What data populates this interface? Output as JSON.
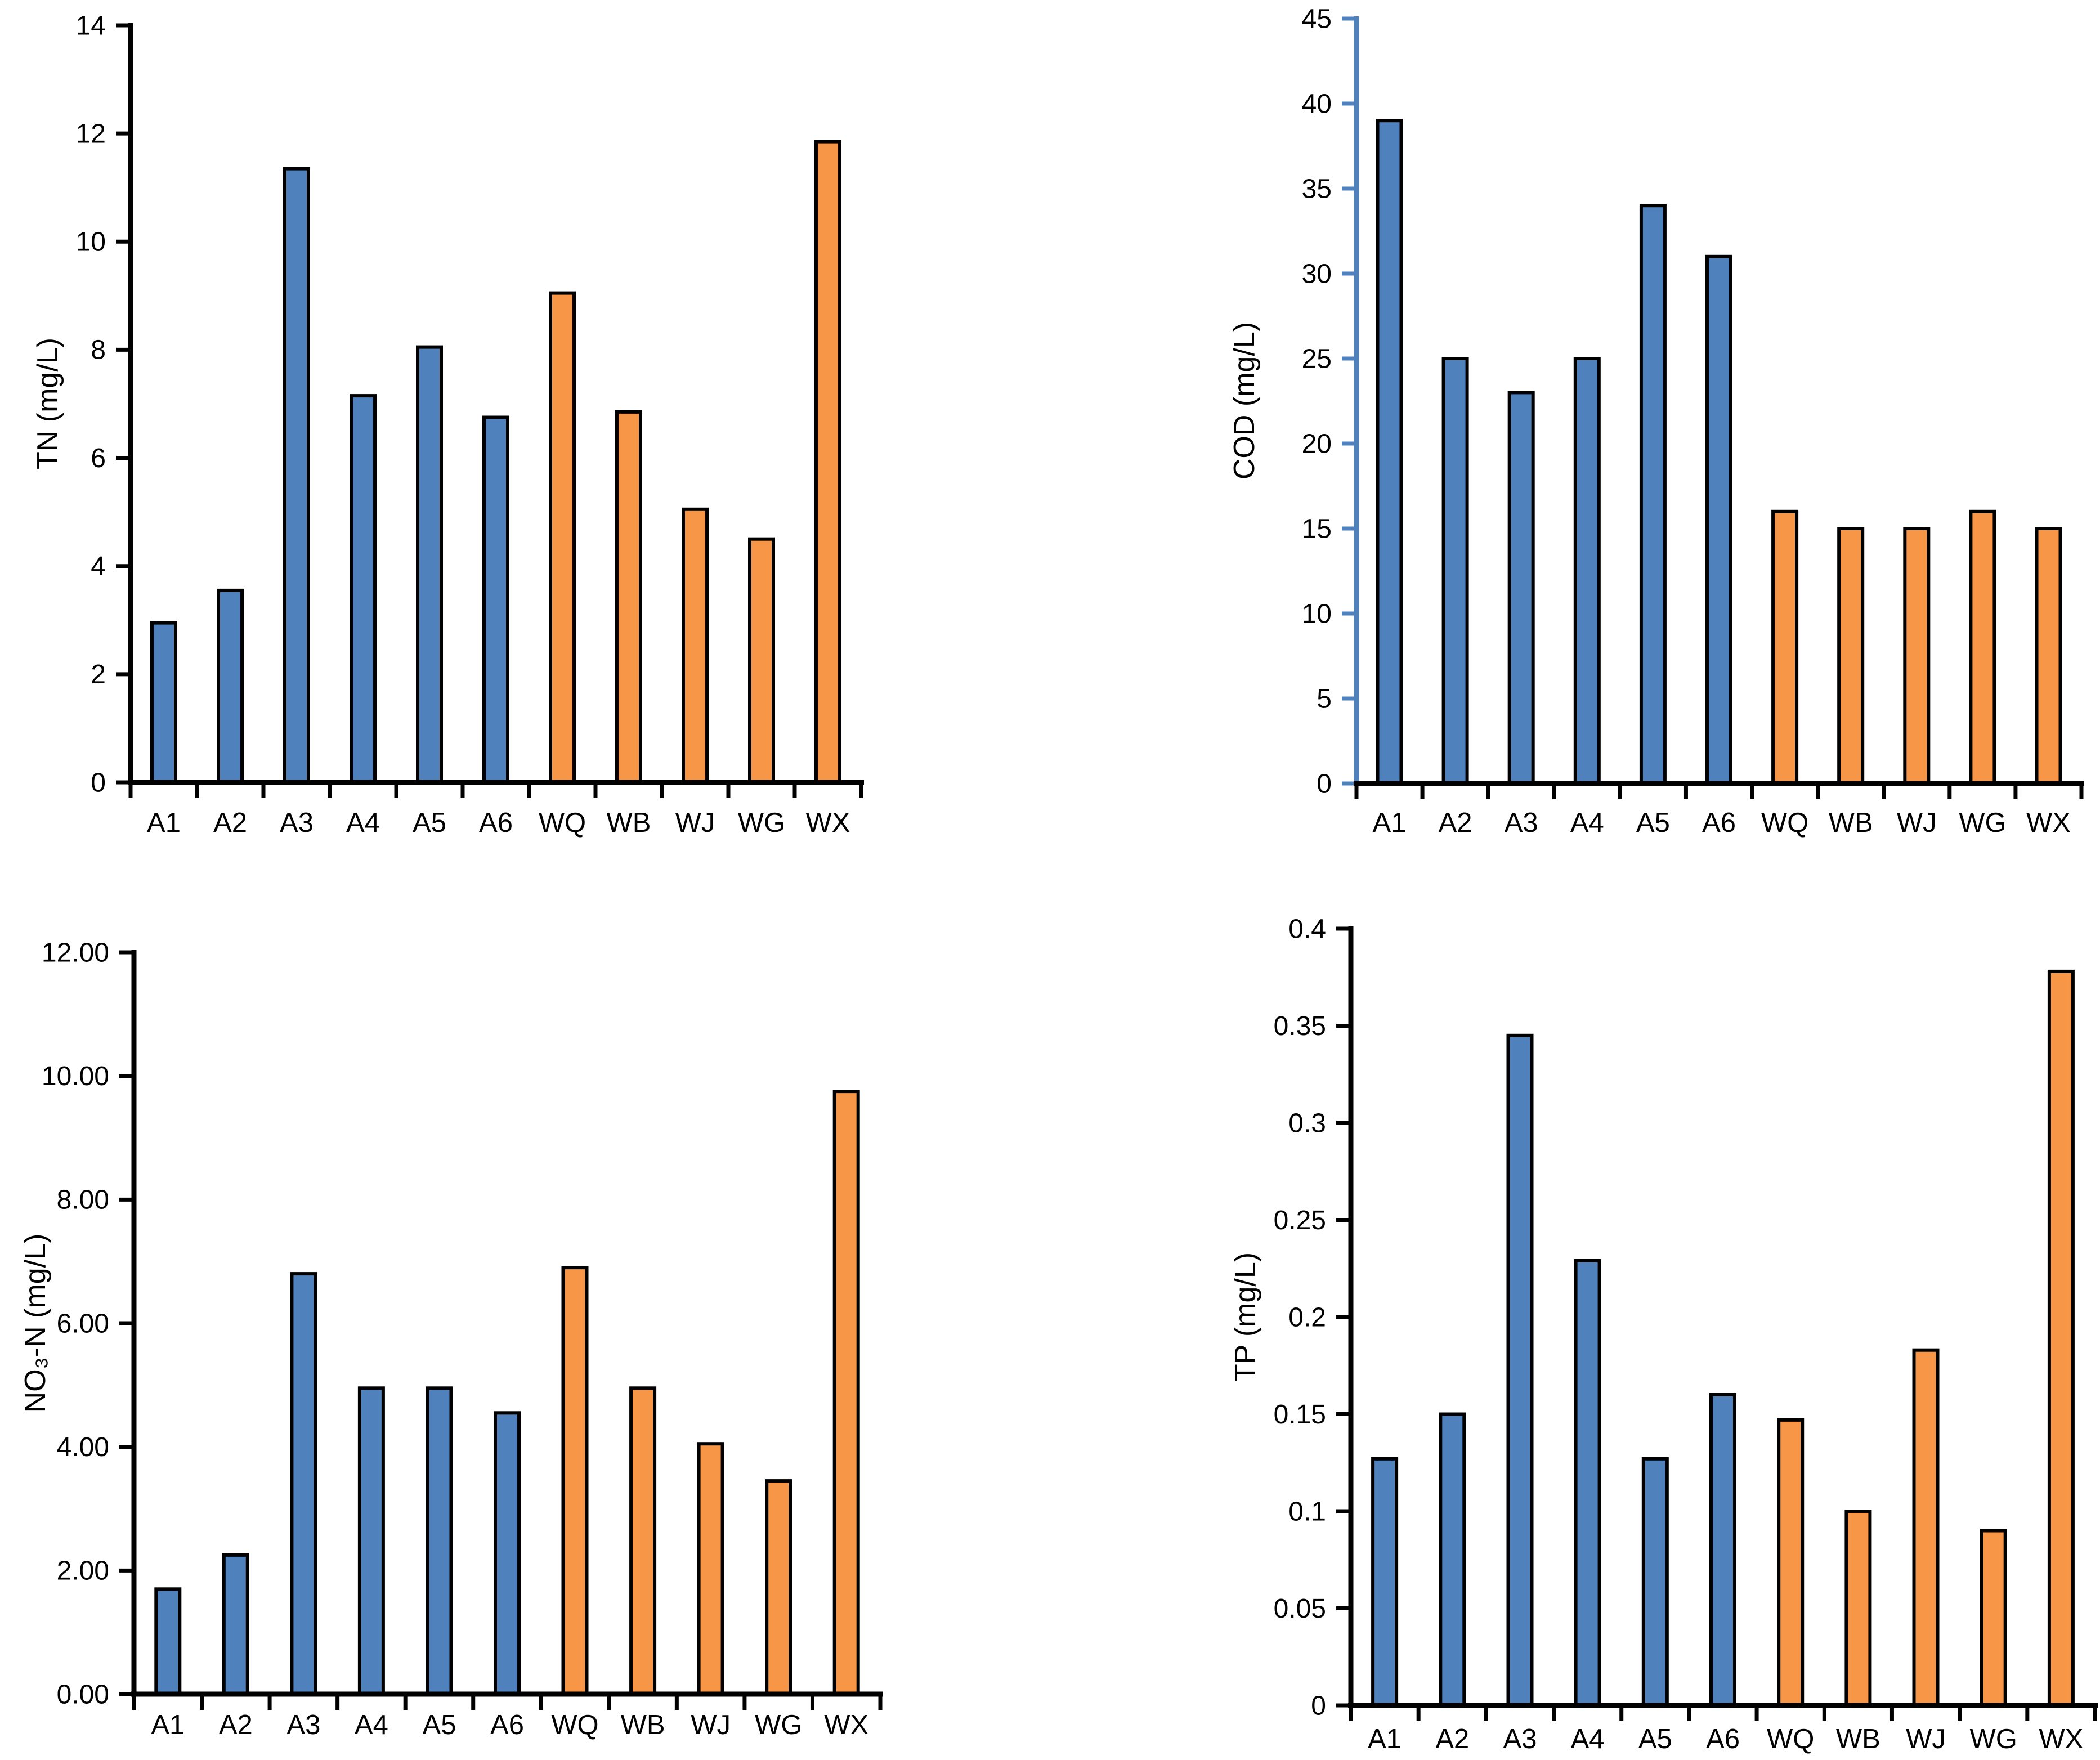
{
  "page": {
    "background": "#ffffff"
  },
  "colors": {
    "bar_blue": "#4F81BD",
    "bar_orange": "#F79646",
    "bar_outline": "#000000",
    "axis_black": "#000000",
    "cod_y_axis_blue": "#4F81BD",
    "text": "#000000"
  },
  "categories": [
    "A1",
    "A2",
    "A3",
    "A4",
    "A5",
    "A6",
    "WQ",
    "WB",
    "WJ",
    "WG",
    "WX"
  ],
  "chart_data": [
    {
      "id": "tn",
      "type": "bar",
      "title": "",
      "xlabel": "",
      "ylabel": "TN (mg/L)",
      "categories": [
        "A1",
        "A2",
        "A3",
        "A4",
        "A5",
        "A6",
        "WQ",
        "WB",
        "WJ",
        "WG",
        "WX"
      ],
      "values": [
        2.95,
        3.55,
        11.35,
        7.15,
        8.05,
        6.75,
        9.05,
        6.85,
        5.05,
        4.5,
        11.85
      ],
      "ylim": [
        0,
        14
      ],
      "ytick_step": 2,
      "ytick_labels": [
        "14",
        "12",
        "10",
        "8",
        "6",
        "4",
        "2",
        "0"
      ],
      "grid": false,
      "legend": false,
      "y_axis_color": "#000000",
      "blue_bar_count": 6
    },
    {
      "id": "cod",
      "type": "bar",
      "title": "",
      "xlabel": "",
      "ylabel": "COD (mg/L)",
      "categories": [
        "A1",
        "A2",
        "A3",
        "A4",
        "A5",
        "A6",
        "WQ",
        "WB",
        "WJ",
        "WG",
        "WX"
      ],
      "values": [
        39,
        25,
        23,
        25,
        34,
        31,
        16,
        15,
        15,
        16,
        15
      ],
      "ylim": [
        0,
        45
      ],
      "ytick_step": 5,
      "ytick_labels": [
        "45",
        "40",
        "35",
        "30",
        "25",
        "20",
        "15",
        "10",
        "5",
        "0"
      ],
      "grid": false,
      "legend": false,
      "y_axis_color": "#4F81BD",
      "blue_bar_count": 6
    },
    {
      "id": "no3n",
      "type": "bar",
      "title": "",
      "xlabel": "",
      "ylabel": "NO₃-N  (mg/L)",
      "categories": [
        "A1",
        "A2",
        "A3",
        "A4",
        "A5",
        "A6",
        "WQ",
        "WB",
        "WJ",
        "WG",
        "WX"
      ],
      "values": [
        1.7,
        2.25,
        6.8,
        4.95,
        4.95,
        4.55,
        6.9,
        4.95,
        4.05,
        3.45,
        9.75
      ],
      "ylim": [
        0,
        12
      ],
      "ytick_step": 2,
      "ytick_labels": [
        "12.00",
        "10.00",
        "8.00",
        "6.00",
        "4.00",
        "2.00",
        "0.00"
      ],
      "grid": false,
      "legend": false,
      "y_axis_color": "#000000",
      "blue_bar_count": 6
    },
    {
      "id": "tp",
      "type": "bar",
      "title": "",
      "xlabel": "",
      "ylabel": "TP (mg/L)",
      "categories": [
        "A1",
        "A2",
        "A3",
        "A4",
        "A5",
        "A6",
        "WQ",
        "WB",
        "WJ",
        "WG",
        "WX"
      ],
      "values": [
        0.127,
        0.15,
        0.345,
        0.229,
        0.127,
        0.16,
        0.147,
        0.1,
        0.183,
        0.09,
        0.378
      ],
      "ylim": [
        0,
        0.4
      ],
      "ytick_step": 0.05,
      "ytick_labels": [
        "0.4",
        "0.35",
        "0.3",
        "0.25",
        "0.2",
        "0.15",
        "0.1",
        "0.05",
        "0"
      ],
      "grid": false,
      "legend": false,
      "y_axis_color": "#000000",
      "blue_bar_count": 6
    }
  ]
}
